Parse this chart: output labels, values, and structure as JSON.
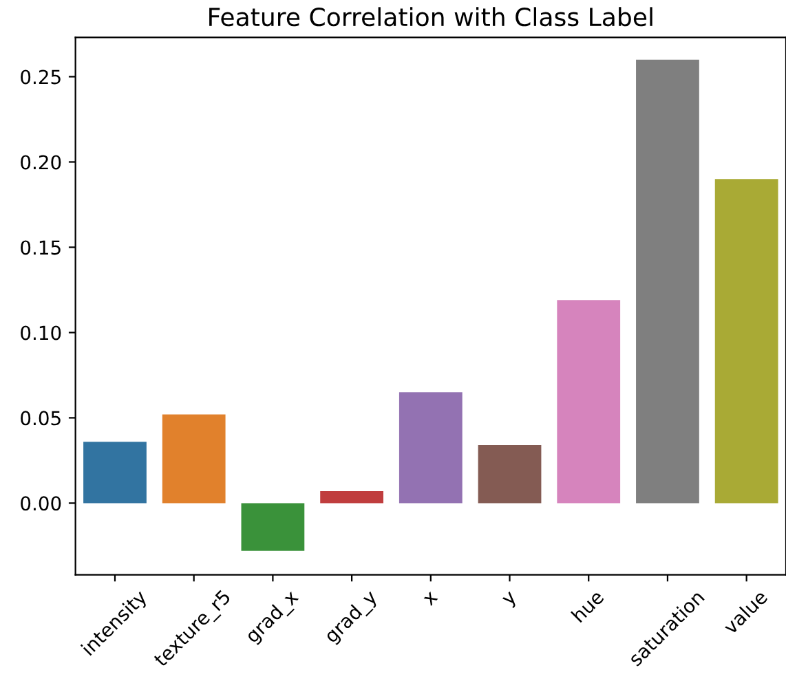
{
  "chart_data": {
    "type": "bar",
    "title": "Feature Correlation with Class Label",
    "categories": [
      "intensity",
      "texture_r5",
      "grad_x",
      "grad_y",
      "x",
      "y",
      "hue",
      "saturation",
      "value"
    ],
    "values": [
      0.036,
      0.052,
      -0.028,
      0.007,
      0.065,
      0.034,
      0.119,
      0.26,
      0.19
    ],
    "colors": [
      "#3274a1",
      "#e1812c",
      "#3a923a",
      "#c03d3e",
      "#9372b2",
      "#845b53",
      "#d684bd",
      "#7f7f7f",
      "#a9aa35"
    ],
    "ylim": [
      -0.042,
      0.273
    ],
    "yticks": [
      {
        "value": 0,
        "label": "0.00"
      },
      {
        "value": 0.05,
        "label": "0.05"
      },
      {
        "value": 0.1,
        "label": "0.10"
      },
      {
        "value": 0.15,
        "label": "0.15"
      },
      {
        "value": 0.2,
        "label": "0.20"
      },
      {
        "value": 0.25,
        "label": "0.25"
      }
    ],
    "grid": false,
    "legend": false
  }
}
